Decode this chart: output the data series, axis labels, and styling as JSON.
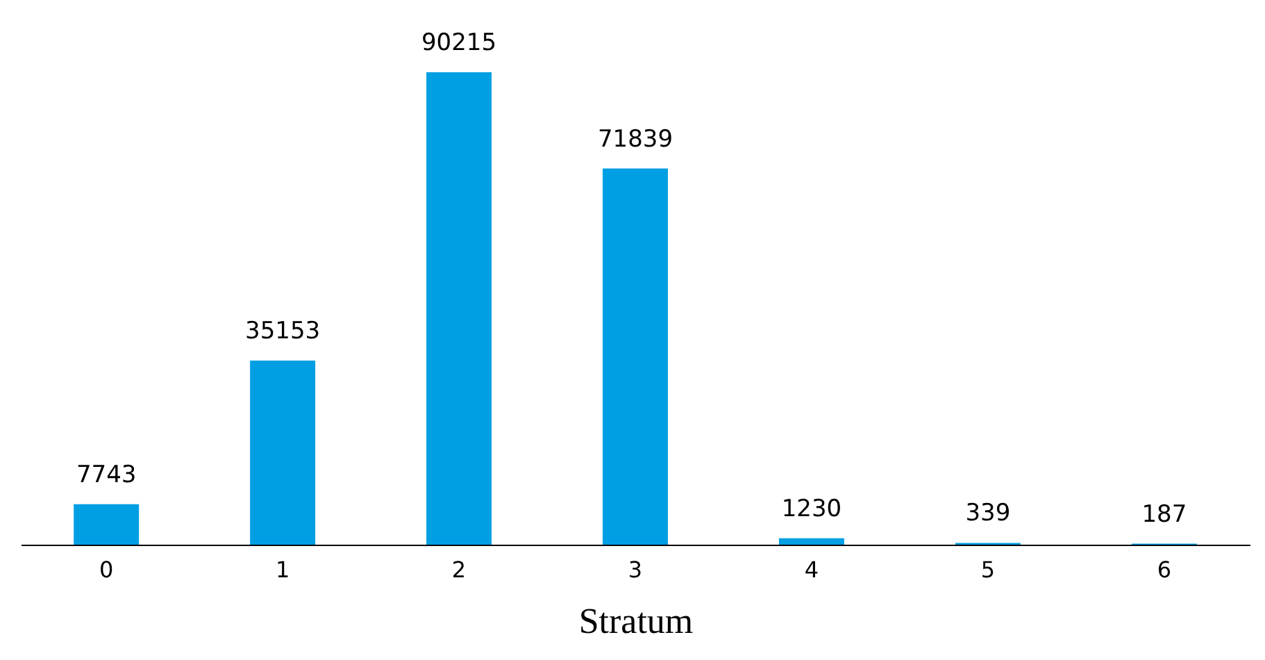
{
  "chart_data": {
    "type": "bar",
    "xlabel": "Stratum",
    "categories": [
      "0",
      "1",
      "2",
      "3",
      "4",
      "5",
      "6"
    ],
    "values": [
      7743,
      35153,
      90215,
      71839,
      1230,
      339,
      187
    ],
    "color": "#009fe3",
    "data_labels": true,
    "tick_labels": "x"
  }
}
